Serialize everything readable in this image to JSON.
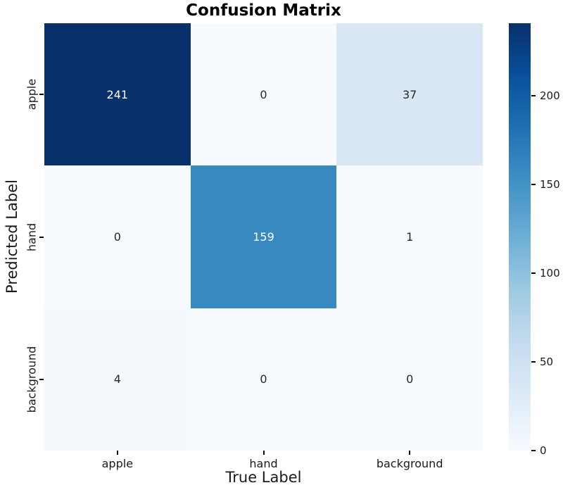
{
  "chart_data": {
    "type": "heatmap",
    "title": "Confusion Matrix",
    "xlabel": "True Label",
    "ylabel": "Predicted Label",
    "x_categories": [
      "apple",
      "hand",
      "background"
    ],
    "y_categories": [
      "apple",
      "hand",
      "background"
    ],
    "matrix": [
      [
        241,
        0,
        37
      ],
      [
        0,
        159,
        1
      ],
      [
        4,
        0,
        0
      ]
    ],
    "vmin": 0,
    "vmax": 241,
    "colorbar_ticks": [
      0,
      50,
      100,
      150,
      200
    ],
    "legend_position": "right-colorbar",
    "grid": false,
    "colormap": {
      "name": "Blues",
      "anchors": [
        "#f7fbff",
        "#deebf7",
        "#c6dbef",
        "#9ecae1",
        "#6baed6",
        "#4292c6",
        "#2171b5",
        "#08519c",
        "#08306b"
      ]
    },
    "cell_colors": [
      [
        "#08306b",
        "#f7fbff",
        "#d9e7f5"
      ],
      [
        "#f7fbff",
        "#3989c1",
        "#f6fafe"
      ],
      [
        "#f4f9fe",
        "#f7fbff",
        "#f7fbff"
      ]
    ],
    "annot_colors": [
      [
        "#ffffff",
        "#262626",
        "#262626"
      ],
      [
        "#262626",
        "#ffffff",
        "#262626"
      ],
      [
        "#262626",
        "#262626",
        "#262626"
      ]
    ]
  }
}
